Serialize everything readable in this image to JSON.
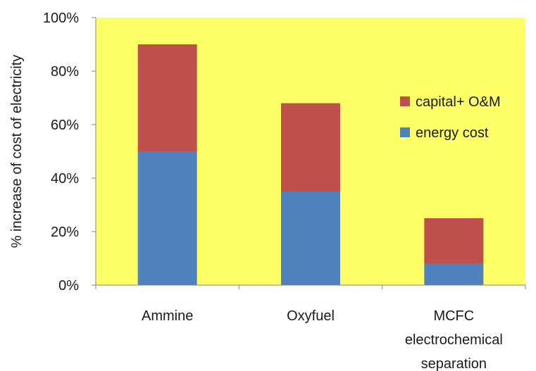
{
  "chart_data": {
    "type": "bar",
    "stacked": true,
    "categories": [
      "Ammine",
      "Oxyfuel",
      "MCFC electrochemical separation"
    ],
    "category_label_lines": [
      [
        "Ammine"
      ],
      [
        "Oxyfuel"
      ],
      [
        "MCFC",
        "electrochemical",
        "separation"
      ]
    ],
    "series": [
      {
        "name": "energy cost",
        "color": "#4F81BD",
        "values": [
          50,
          35,
          8
        ]
      },
      {
        "name": "capital+ O&M",
        "color": "#C0504D",
        "values": [
          40,
          33,
          17
        ]
      }
    ],
    "title": "",
    "xlabel": "",
    "ylabel": "% increase of cost of electricity",
    "ylim": [
      0,
      100
    ],
    "y_ticks": [
      0,
      20,
      40,
      60,
      80,
      100
    ],
    "y_tick_labels": [
      "0%",
      "20%",
      "40%",
      "60%",
      "80%",
      "100%"
    ],
    "plot_background": "#FFFF66",
    "grid": false,
    "legend_position": "right",
    "legend_order": [
      "capital+ O&M",
      "energy cost"
    ]
  }
}
